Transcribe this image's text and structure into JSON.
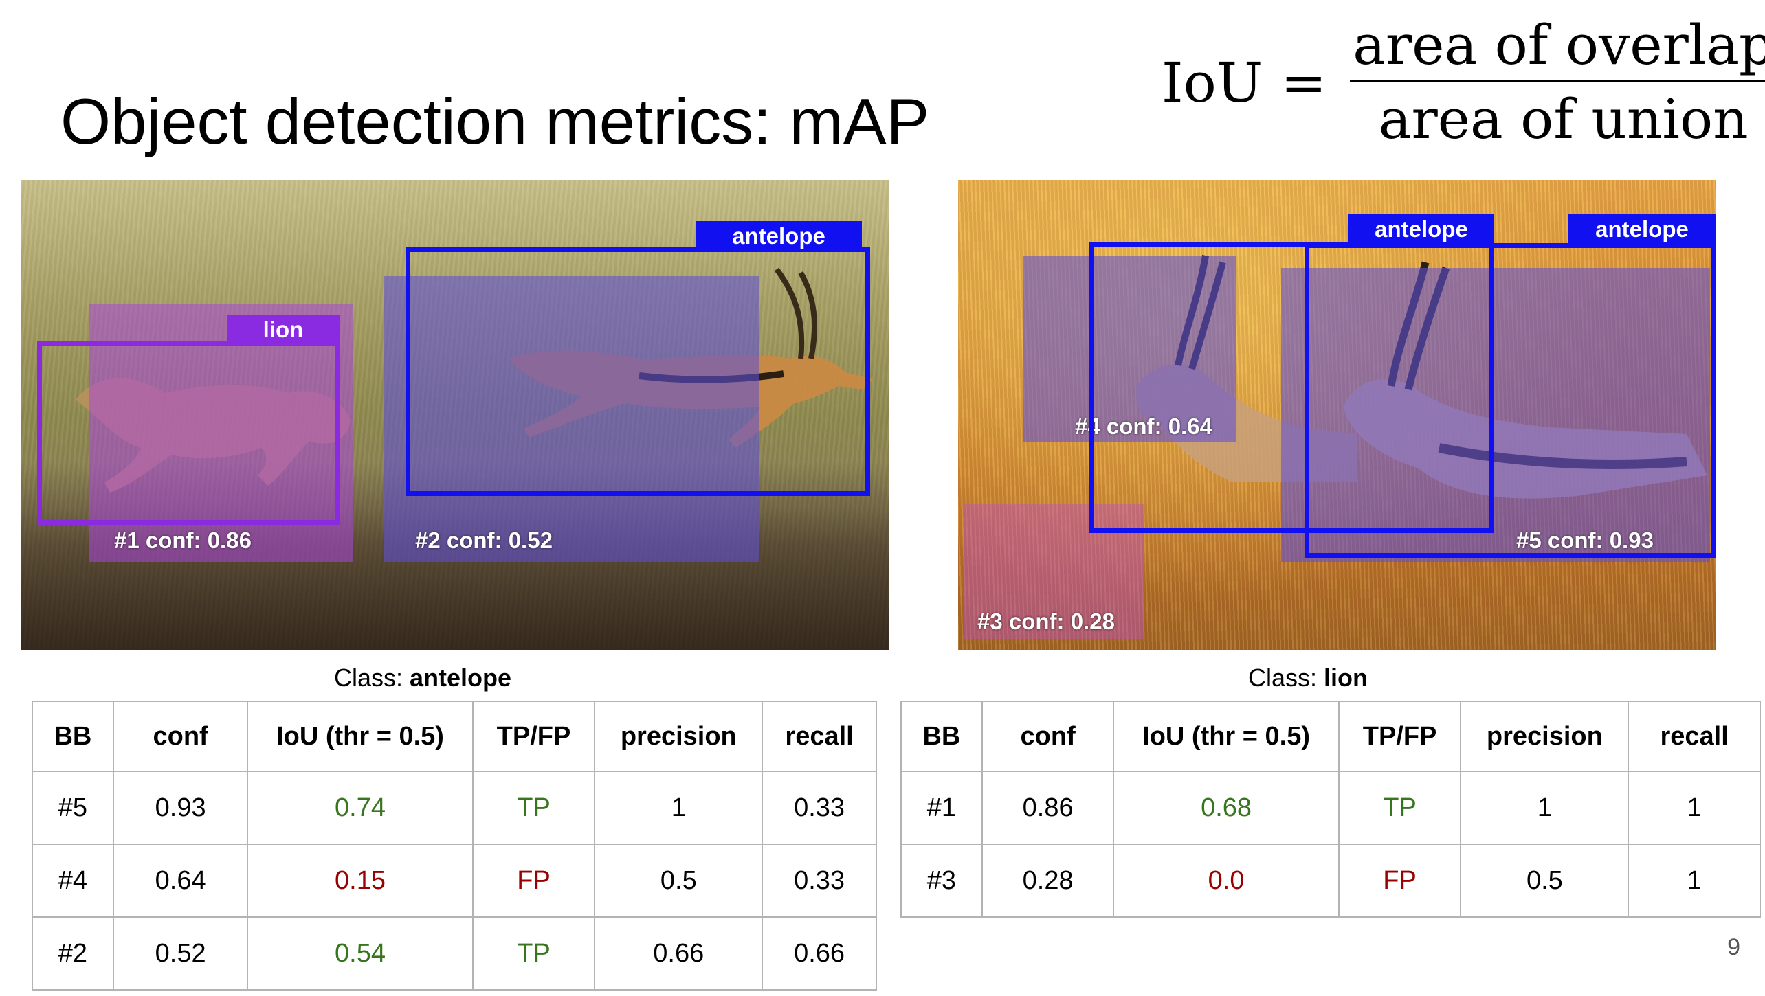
{
  "slide": {
    "title": "Object detection metrics: mAP",
    "page_number": "9"
  },
  "formula": {
    "lhs": "IoU",
    "equals": "=",
    "numerator": "area of overlap",
    "denominator": "area of union"
  },
  "image_left": {
    "ground_truth_labels": [
      "lion",
      "antelope"
    ],
    "predictions": [
      {
        "label": "#1 conf: 0.86"
      },
      {
        "label": "#2 conf: 0.52"
      }
    ]
  },
  "image_right": {
    "ground_truth_labels": [
      "antelope",
      "antelope"
    ],
    "predictions": [
      {
        "label": "#4 conf: 0.64"
      },
      {
        "label": "#3 conf: 0.28"
      },
      {
        "label": "#5 conf: 0.93"
      }
    ]
  },
  "colors": {
    "lion_box": "#8a2be2",
    "antelope_box": "#1010f0",
    "tp_text": "#38761d",
    "fp_text": "#990000"
  },
  "tables": [
    {
      "caption_prefix": "Class: ",
      "caption_class": "antelope",
      "headers": [
        "BB",
        "conf",
        "IoU (thr = 0.5)",
        "TP/FP",
        "precision",
        "recall"
      ],
      "rows": [
        {
          "bb": "#5",
          "conf": "0.93",
          "iou": "0.74",
          "tpfp": "TP",
          "precision": "1",
          "recall": "0.33"
        },
        {
          "bb": "#4",
          "conf": "0.64",
          "iou": "0.15",
          "tpfp": "FP",
          "precision": "0.5",
          "recall": "0.33"
        },
        {
          "bb": "#2",
          "conf": "0.52",
          "iou": "0.54",
          "tpfp": "TP",
          "precision": "0.66",
          "recall": "0.66"
        }
      ]
    },
    {
      "caption_prefix": "Class: ",
      "caption_class": "lion",
      "headers": [
        "BB",
        "conf",
        "IoU (thr = 0.5)",
        "TP/FP",
        "precision",
        "recall"
      ],
      "rows": [
        {
          "bb": "#1",
          "conf": "0.86",
          "iou": "0.68",
          "tpfp": "TP",
          "precision": "1",
          "recall": "1"
        },
        {
          "bb": "#3",
          "conf": "0.28",
          "iou": "0.0",
          "tpfp": "FP",
          "precision": "0.5",
          "recall": "1"
        }
      ]
    }
  ]
}
